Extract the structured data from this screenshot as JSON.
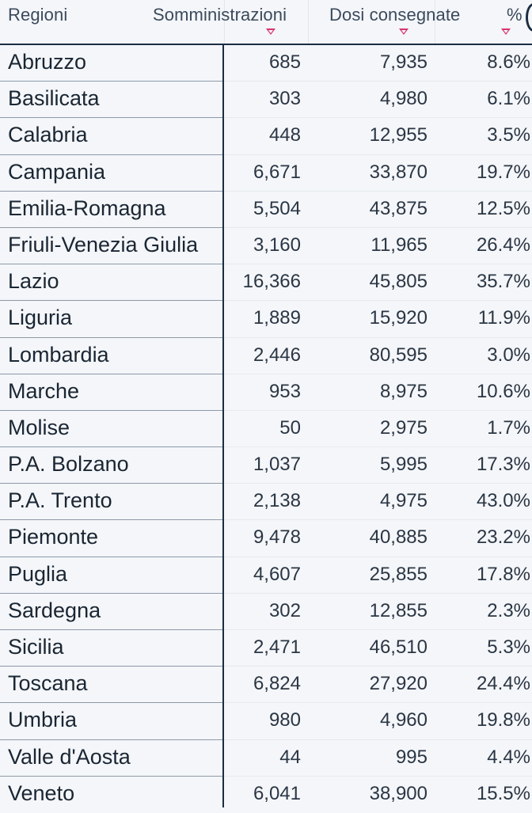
{
  "header": {
    "col_region": "Regioni",
    "col_administrations": "Somministrazioni",
    "col_doses_delivered": "Dosi consegnate",
    "col_percent": "%"
  },
  "rows": [
    {
      "region": "Abruzzo",
      "administrations": "685",
      "delivered": "7,935",
      "percent": "8.6%"
    },
    {
      "region": "Basilicata",
      "administrations": "303",
      "delivered": "4,980",
      "percent": "6.1%"
    },
    {
      "region": "Calabria",
      "administrations": "448",
      "delivered": "12,955",
      "percent": "3.5%"
    },
    {
      "region": "Campania",
      "administrations": "6,671",
      "delivered": "33,870",
      "percent": "19.7%"
    },
    {
      "region": "Emilia-Romagna",
      "administrations": "5,504",
      "delivered": "43,875",
      "percent": "12.5%"
    },
    {
      "region": "Friuli-Venezia Giulia",
      "administrations": "3,160",
      "delivered": "11,965",
      "percent": "26.4%"
    },
    {
      "region": "Lazio",
      "administrations": "16,366",
      "delivered": "45,805",
      "percent": "35.7%"
    },
    {
      "region": "Liguria",
      "administrations": "1,889",
      "delivered": "15,920",
      "percent": "11.9%"
    },
    {
      "region": "Lombardia",
      "administrations": "2,446",
      "delivered": "80,595",
      "percent": "3.0%"
    },
    {
      "region": "Marche",
      "administrations": "953",
      "delivered": "8,975",
      "percent": "10.6%"
    },
    {
      "region": "Molise",
      "administrations": "50",
      "delivered": "2,975",
      "percent": "1.7%"
    },
    {
      "region": "P.A. Bolzano",
      "administrations": "1,037",
      "delivered": "5,995",
      "percent": "17.3%"
    },
    {
      "region": "P.A. Trento",
      "administrations": "2,138",
      "delivered": "4,975",
      "percent": "43.0%"
    },
    {
      "region": "Piemonte",
      "administrations": "9,478",
      "delivered": "40,885",
      "percent": "23.2%"
    },
    {
      "region": "Puglia",
      "administrations": "4,607",
      "delivered": "25,855",
      "percent": "17.8%"
    },
    {
      "region": "Sardegna",
      "administrations": "302",
      "delivered": "12,855",
      "percent": "2.3%"
    },
    {
      "region": "Sicilia",
      "administrations": "2,471",
      "delivered": "46,510",
      "percent": "5.3%"
    },
    {
      "region": "Toscana",
      "administrations": "6,824",
      "delivered": "27,920",
      "percent": "24.4%"
    },
    {
      "region": "Umbria",
      "administrations": "980",
      "delivered": "4,960",
      "percent": "19.8%"
    },
    {
      "region": "Valle d'Aosta",
      "administrations": "44",
      "delivered": "995",
      "percent": "4.4%"
    },
    {
      "region": "Veneto",
      "administrations": "6,041",
      "delivered": "38,900",
      "percent": "15.5%"
    }
  ],
  "colors": {
    "sort_arrow": "#d6336c",
    "frozen_divider": "#1b2d44",
    "background": "#f4f6f9"
  },
  "icons": {
    "sort": "sort-desc-icon"
  }
}
